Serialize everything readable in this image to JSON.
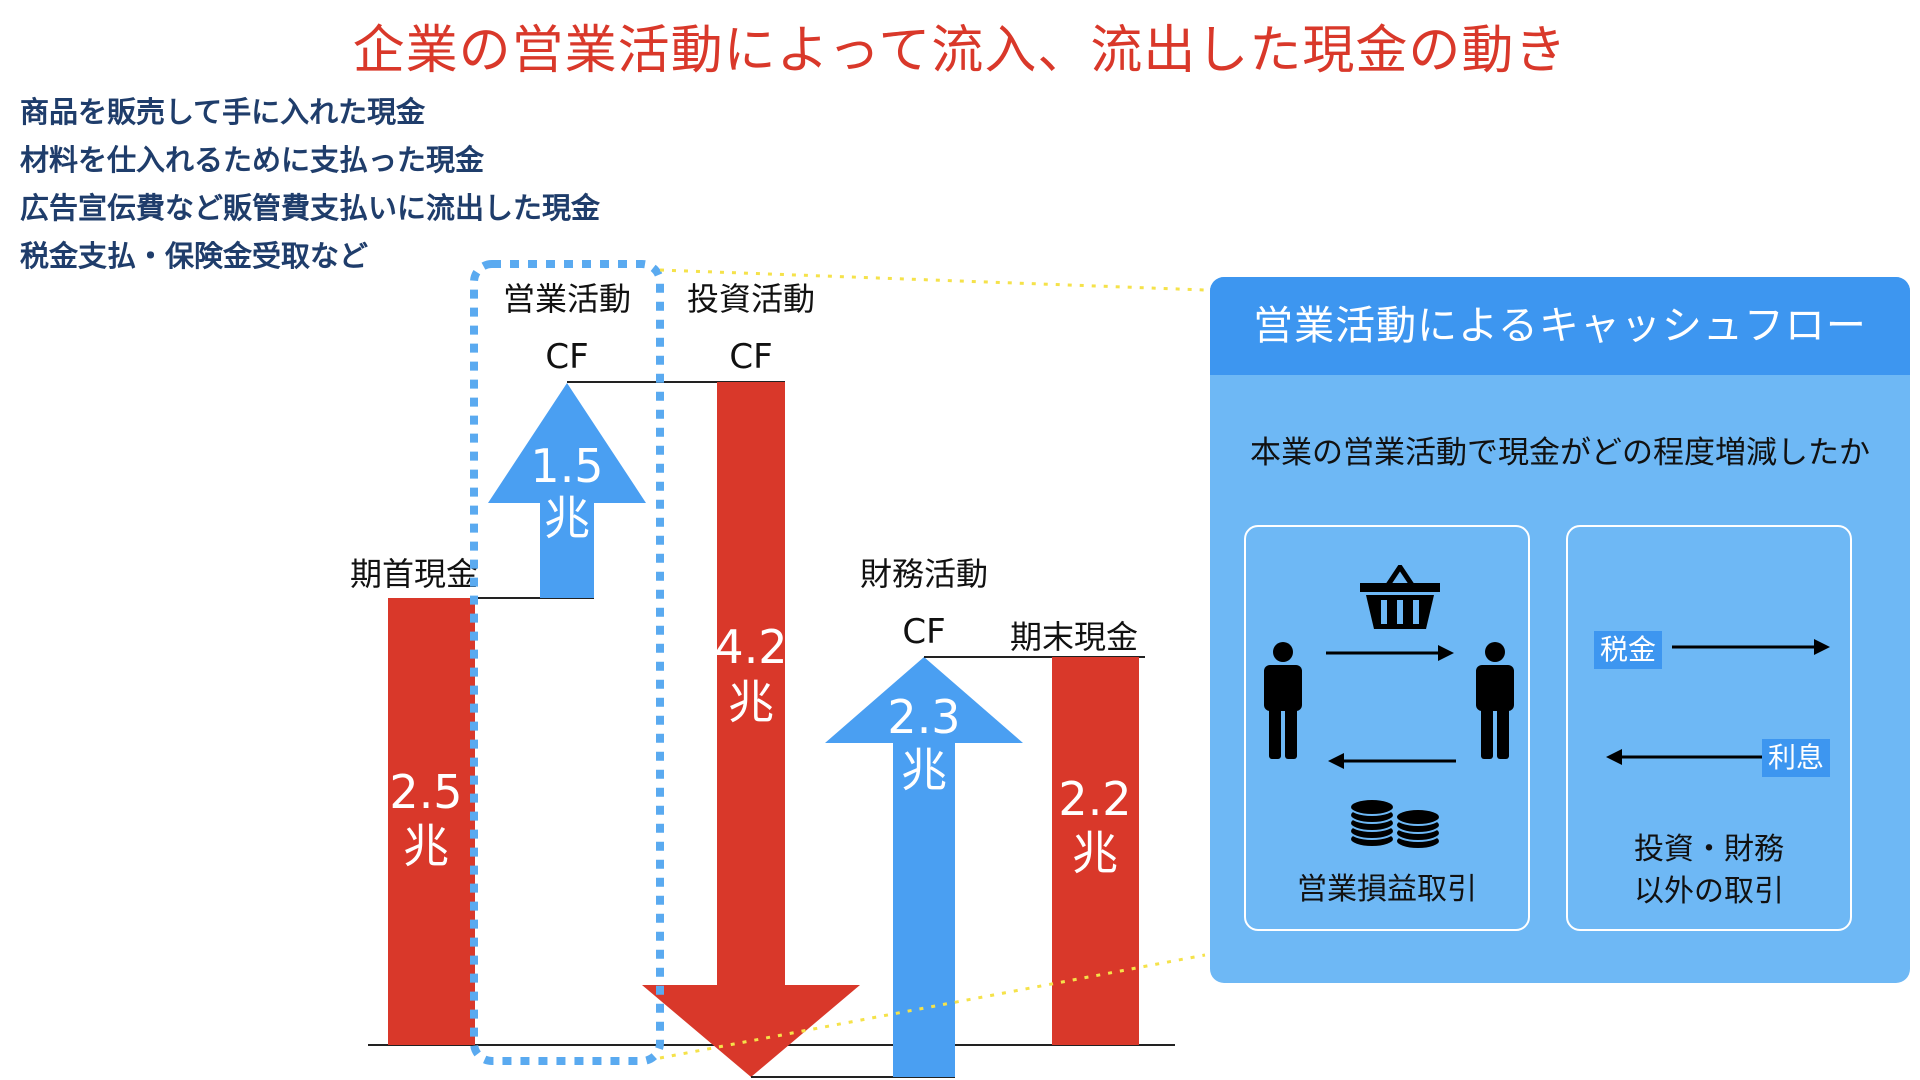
{
  "title": "企業の営業活動によって流入、流出した現金の動き",
  "bullets": [
    "商品を販売して手に入れた現金",
    "材料を仕入れるために支払った現金",
    "広告宣伝費など販管費支払いに流出した現金",
    "税金支払・保険金受取など"
  ],
  "waterfall": {
    "opening": {
      "label": "期首現金",
      "value": "2.5",
      "unit": "兆"
    },
    "operating": {
      "label1": "営業活動",
      "label2": "CF",
      "value": "1.5",
      "unit": "兆"
    },
    "investing": {
      "label1": "投資活動",
      "label2": "CF",
      "value": "4.2",
      "unit": "兆"
    },
    "financing": {
      "label1": "財務活動",
      "label2": "CF",
      "value": "2.3",
      "unit": "兆"
    },
    "closing": {
      "label": "期末現金",
      "value": "2.2",
      "unit": "兆"
    }
  },
  "panel": {
    "header": "営業活動によるキャッシュフロー",
    "subtitle": "本業の営業活動で現金がどの程度増減したか",
    "left_box": {
      "caption": "営業損益取引"
    },
    "right_box": {
      "tag_tax": "税金",
      "tag_interest": "利息",
      "caption_line1": "投資・財務",
      "caption_line2": "以外の取引"
    }
  },
  "colors": {
    "red": "#d9382a",
    "blue": "#4a9ff2",
    "navy": "#1f3d6b",
    "panel": "#6eb8f5",
    "panel_header": "#3d96f0"
  },
  "icons": [
    "person-icon",
    "basket-icon",
    "coins-icon",
    "arrow-right-icon",
    "arrow-left-icon"
  ]
}
